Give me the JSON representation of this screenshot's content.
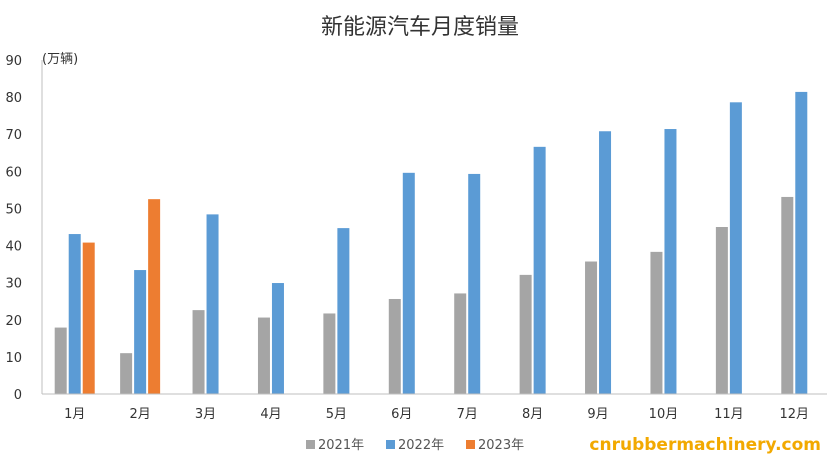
{
  "chart_data": {
    "type": "bar",
    "title": "新能源汽车月度销量",
    "unit_label": "(万辆)",
    "categories": [
      "1月",
      "2月",
      "3月",
      "4月",
      "5月",
      "6月",
      "7月",
      "8月",
      "9月",
      "10月",
      "11月",
      "12月"
    ],
    "series": [
      {
        "name": "2021年",
        "color": "#a5a5a5",
        "values": [
          17.9,
          11.0,
          22.6,
          20.6,
          21.7,
          25.6,
          27.1,
          32.1,
          35.7,
          38.3,
          45.0,
          53.1
        ]
      },
      {
        "name": "2022年",
        "color": "#5b9bd5",
        "values": [
          43.1,
          33.4,
          48.4,
          29.9,
          44.7,
          59.6,
          59.3,
          66.6,
          70.8,
          71.4,
          78.6,
          81.4
        ]
      },
      {
        "name": "2023年",
        "color": "#ed7d31",
        "values": [
          40.8,
          52.5,
          null,
          null,
          null,
          null,
          null,
          null,
          null,
          null,
          null,
          null
        ]
      }
    ],
    "ylim": [
      0,
      90
    ],
    "yticks": [
      0,
      10,
      20,
      30,
      40,
      50,
      60,
      70,
      80,
      90
    ],
    "grid": false,
    "legend_position": "bottom"
  },
  "watermark": "cnrubbermachinery.com"
}
